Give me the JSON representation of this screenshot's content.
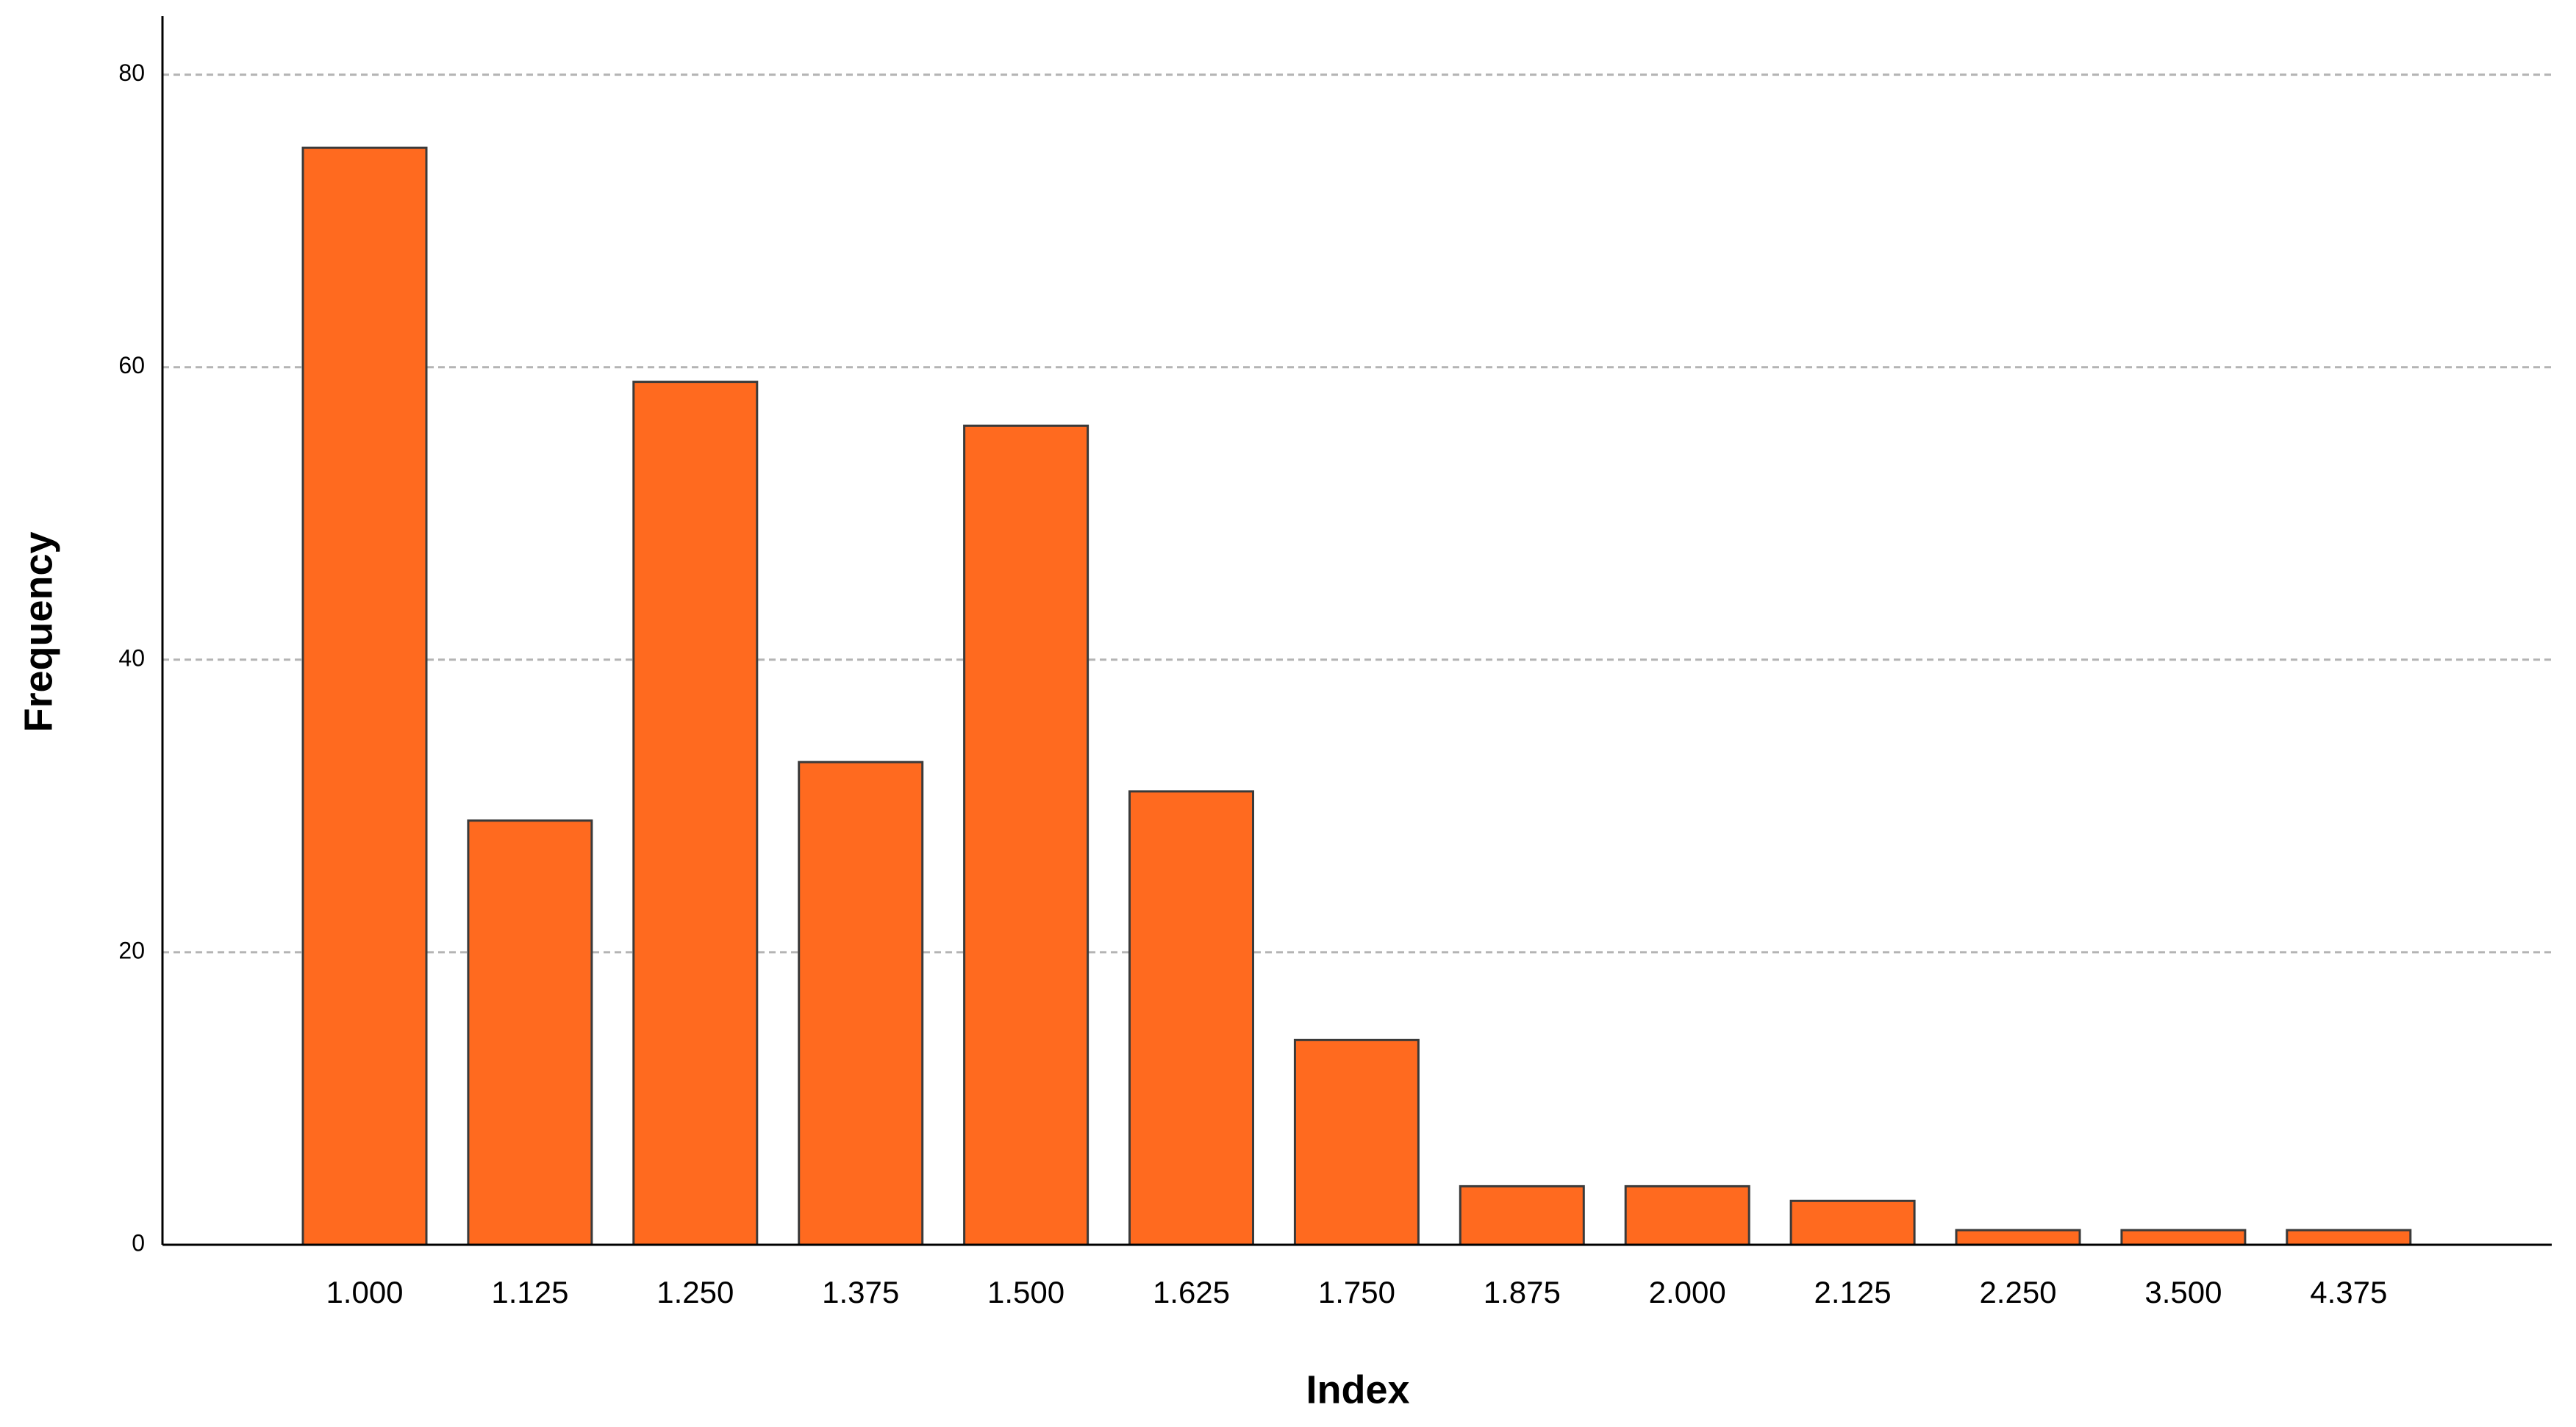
{
  "chart_data": {
    "type": "bar",
    "xlabel": "Index",
    "ylabel": "Frequency",
    "categories": [
      "1.000",
      "1.125",
      "1.250",
      "1.375",
      "1.500",
      "1.625",
      "1.750",
      "1.875",
      "2.000",
      "2.125",
      "2.250",
      "3.500",
      "4.375"
    ],
    "values": [
      75,
      29,
      59,
      33,
      56,
      31,
      14,
      4,
      4,
      3,
      1,
      1,
      1
    ],
    "color": "#ff6a1f",
    "ylim": [
      0,
      84
    ],
    "yticks": [
      0,
      20,
      40,
      60,
      80
    ],
    "grid": true
  }
}
